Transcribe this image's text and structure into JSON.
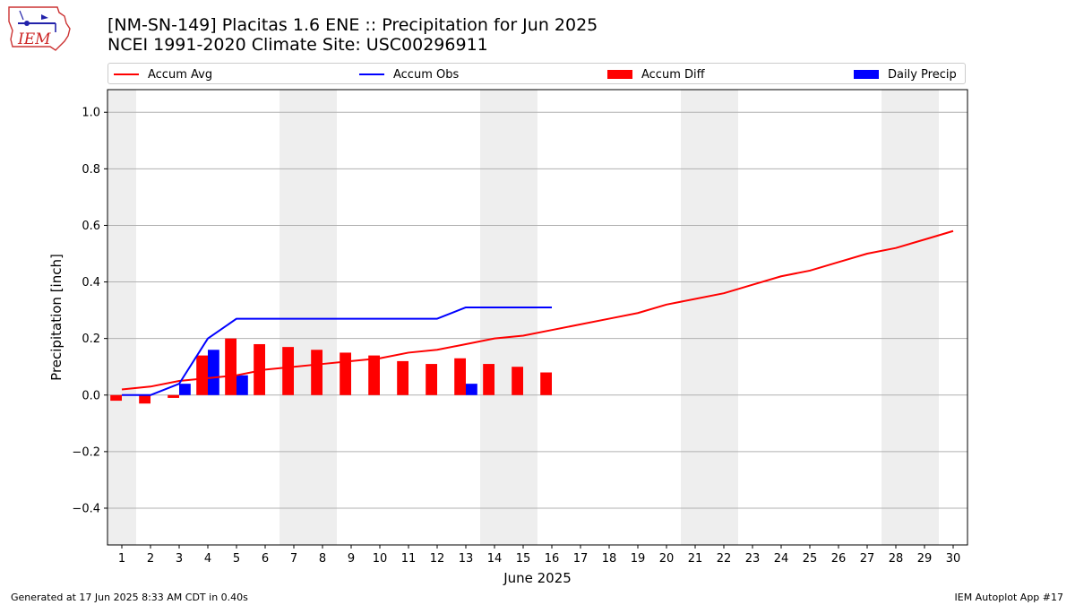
{
  "logo": {
    "text": "IEM"
  },
  "header": {
    "title_line1": "[NM-SN-149] Placitas 1.6 ENE :: Precipitation for Jun 2025",
    "title_line2": "NCEI 1991-2020 Climate Site: USC00296911"
  },
  "footer": {
    "left": "Generated at 17 Jun 2025 8:33 AM CDT in 0.40s",
    "right": "IEM Autoplot App #17"
  },
  "colors": {
    "avg": "#ff0000",
    "obs": "#0000ff",
    "diff": "#ff0000",
    "daily": "#0000ff",
    "weekend_shade": "#eeeeee",
    "grid": "#b0b0b0"
  },
  "chart_data": {
    "type": "bar",
    "xlabel": "June 2025",
    "ylabel": "Precipitation [inch]",
    "xlim": [
      0.5,
      30.5
    ],
    "ylim": [
      -0.53,
      1.08
    ],
    "yticks": [
      -0.4,
      -0.2,
      0.0,
      0.2,
      0.4,
      0.6,
      0.8,
      1.0
    ],
    "ytick_labels": [
      "−0.4",
      "−0.2",
      "0.0",
      "0.2",
      "0.4",
      "0.6",
      "0.8",
      "1.0"
    ],
    "days": [
      1,
      2,
      3,
      4,
      5,
      6,
      7,
      8,
      9,
      10,
      11,
      12,
      13,
      14,
      15,
      16,
      17,
      18,
      19,
      20,
      21,
      22,
      23,
      24,
      25,
      26,
      27,
      28,
      29,
      30
    ],
    "x_tick_labels": [
      "1",
      "2",
      "3",
      "4",
      "5",
      "6",
      "7",
      "8",
      "9",
      "10",
      "11",
      "12",
      "13",
      "14",
      "15",
      "16",
      "17",
      "18",
      "19",
      "20",
      "21",
      "22",
      "23",
      "24",
      "25",
      "26",
      "27",
      "28",
      "29",
      "30"
    ],
    "weekend_days": [
      1,
      7,
      8,
      14,
      15,
      21,
      22,
      28,
      29
    ],
    "grid": true,
    "legend_position": "top",
    "legend": [
      {
        "label": "Accum Avg",
        "kind": "line",
        "color": "#ff0000"
      },
      {
        "label": "Accum Obs",
        "kind": "line",
        "color": "#0000ff"
      },
      {
        "label": "Accum Diff",
        "kind": "bar",
        "color": "#ff0000"
      },
      {
        "label": "Daily Precip",
        "kind": "bar",
        "color": "#0000ff"
      }
    ],
    "series": [
      {
        "name": "Accum Avg",
        "type": "line",
        "x": [
          1,
          2,
          3,
          4,
          5,
          6,
          7,
          8,
          9,
          10,
          11,
          12,
          13,
          14,
          15,
          16,
          17,
          18,
          19,
          20,
          21,
          22,
          23,
          24,
          25,
          26,
          27,
          28,
          29,
          30
        ],
        "values": [
          0.02,
          0.03,
          0.05,
          0.06,
          0.07,
          0.09,
          0.1,
          0.11,
          0.12,
          0.13,
          0.15,
          0.16,
          0.18,
          0.2,
          0.21,
          0.23,
          0.25,
          0.27,
          0.29,
          0.32,
          0.34,
          0.36,
          0.39,
          0.42,
          0.44,
          0.47,
          0.5,
          0.52,
          0.55,
          0.58
        ]
      },
      {
        "name": "Accum Obs",
        "type": "line",
        "x": [
          1,
          2,
          3,
          4,
          5,
          6,
          7,
          8,
          9,
          10,
          11,
          12,
          13,
          14,
          15,
          16
        ],
        "values": [
          0.0,
          0.0,
          0.04,
          0.2,
          0.27,
          0.27,
          0.27,
          0.27,
          0.27,
          0.27,
          0.27,
          0.27,
          0.31,
          0.31,
          0.31,
          0.31
        ]
      },
      {
        "name": "Accum Diff",
        "type": "bar",
        "x": [
          1,
          2,
          3,
          4,
          5,
          6,
          7,
          8,
          9,
          10,
          11,
          12,
          13,
          14,
          15,
          16
        ],
        "values": [
          -0.02,
          -0.03,
          -0.01,
          0.14,
          0.2,
          0.18,
          0.17,
          0.16,
          0.15,
          0.14,
          0.12,
          0.11,
          0.13,
          0.11,
          0.1,
          0.08
        ]
      },
      {
        "name": "Daily Precip",
        "type": "bar",
        "x": [
          3,
          4,
          5,
          13
        ],
        "values": [
          0.04,
          0.16,
          0.07,
          0.04
        ]
      }
    ]
  }
}
